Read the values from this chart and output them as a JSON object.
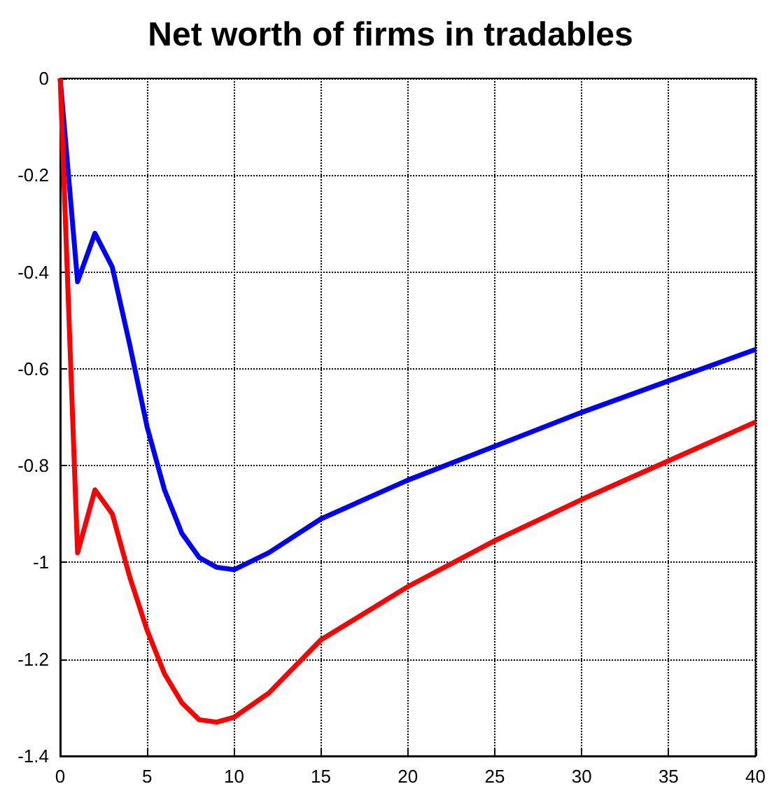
{
  "chart_data": {
    "type": "line",
    "title": "Net worth of firms in tradables",
    "x": [
      0,
      1,
      2,
      3,
      4,
      5,
      6,
      7,
      8,
      9,
      10,
      12,
      15,
      20,
      25,
      30,
      35,
      40
    ],
    "series": [
      {
        "color": "#0000ff",
        "values": [
          0,
          -0.42,
          -0.32,
          -0.39,
          -0.55,
          -0.72,
          -0.85,
          -0.94,
          -0.99,
          -1.01,
          -1.015,
          -0.98,
          -0.91,
          -0.83,
          -0.76,
          -0.69,
          -0.625,
          -0.56
        ]
      },
      {
        "color": "#ff0000",
        "values": [
          0,
          -0.98,
          -0.85,
          -0.9,
          -1.03,
          -1.14,
          -1.23,
          -1.29,
          -1.325,
          -1.33,
          -1.32,
          -1.27,
          -1.16,
          -1.05,
          -0.955,
          -0.87,
          -0.79,
          -0.71
        ]
      }
    ],
    "xlim": [
      0,
      40
    ],
    "xticks": [
      0,
      5,
      10,
      15,
      20,
      25,
      30,
      35,
      40
    ],
    "ylim": [
      -1.4,
      0
    ],
    "yticks": [
      -1.4,
      -1.2,
      -1,
      -0.8,
      -0.6,
      -0.4,
      -0.2,
      0
    ],
    "grid": true,
    "marker": "none",
    "line_style": "solid"
  }
}
